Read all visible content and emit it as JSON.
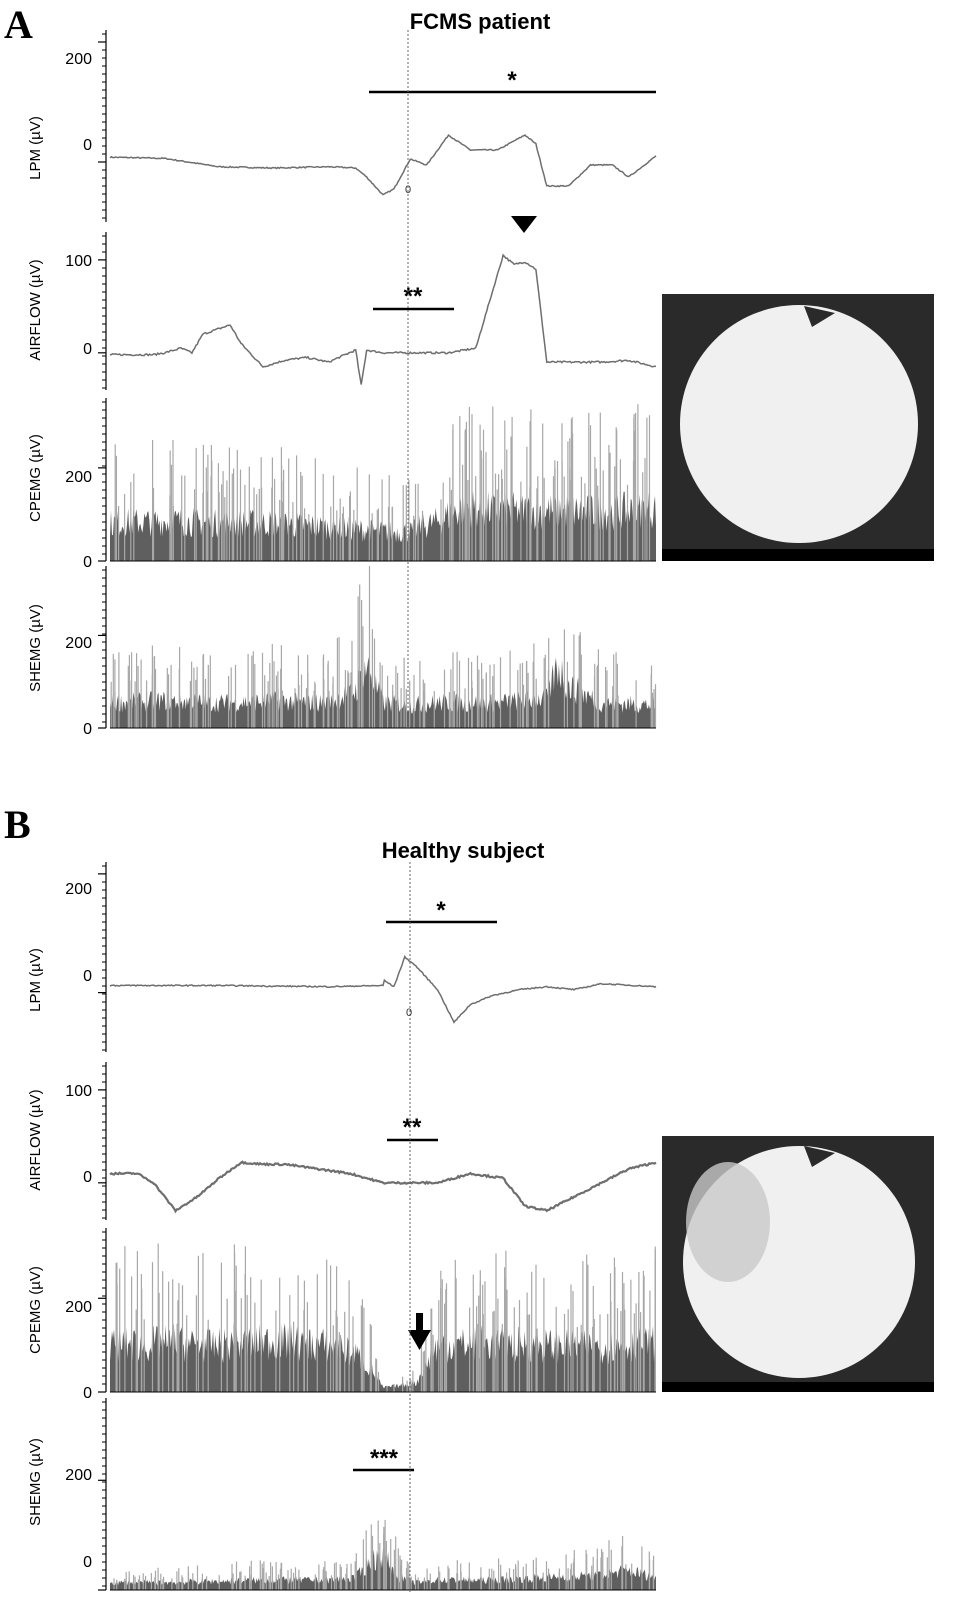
{
  "panels": [
    {
      "letter": "A",
      "title": "FCMS patient",
      "image_alt": "endoscopic view",
      "marker": "0",
      "annotations": {
        "lpm_bar": "*",
        "airflow_bar": "**",
        "arrowhead": "▼"
      },
      "channels": [
        {
          "key": "lpm",
          "label": "LPM (µV)",
          "ticks": [
            "200",
            "0"
          ]
        },
        {
          "key": "airflow",
          "label": "AIRFLOW (µV)",
          "ticks": [
            "100",
            "0"
          ]
        },
        {
          "key": "cpemg",
          "label": "CPEMG (µV)",
          "ticks": [
            "200",
            "0"
          ]
        },
        {
          "key": "shemg",
          "label": "SHEMG (µV)",
          "ticks": [
            "200",
            "0"
          ]
        }
      ]
    },
    {
      "letter": "B",
      "title": "Healthy subject",
      "image_alt": "endoscopic view",
      "marker": "0",
      "annotations": {
        "lpm_bar": "*",
        "airflow_bar": "**",
        "shemg_bar": "***",
        "arrow": "↓"
      },
      "channels": [
        {
          "key": "lpm",
          "label": "LPM (µV)",
          "ticks": [
            "200",
            "0"
          ]
        },
        {
          "key": "airflow",
          "label": "AIRFLOW (µV)",
          "ticks": [
            "100",
            "0"
          ]
        },
        {
          "key": "cpemg",
          "label": "CPEMG (µV)",
          "ticks": [
            "200",
            "0"
          ]
        },
        {
          "key": "shemg",
          "label": "SHEMG (µV)",
          "ticks": [
            "200",
            "0"
          ]
        }
      ]
    }
  ],
  "colors": {
    "trace": "#6e6e6e",
    "emg_fill": "#5f5f5f",
    "emg_spike": "#a8a8a8",
    "axis": "#000000",
    "endo_bg": "#2a2a2a",
    "endo_disc": "#f2f2f2"
  },
  "chart_data": [
    {
      "type": "line",
      "panel": "A",
      "channels": {
        "lpm": {
          "unit": "µV",
          "ylim": [
            -100,
            220
          ],
          "x": [
            0,
            0.1,
            0.2,
            0.3,
            0.4,
            0.45,
            0.47,
            0.5,
            0.52,
            0.55,
            0.58,
            0.62,
            0.66,
            0.71,
            0.76,
            0.78,
            0.8,
            0.84,
            0.88,
            0.92,
            0.95,
            1
          ],
          "y": [
            8,
            6,
            -8,
            -10,
            -8,
            -10,
            -25,
            -55,
            -45,
            5,
            -5,
            45,
            20,
            20,
            45,
            30,
            -40,
            -40,
            -5,
            -5,
            -25,
            10
          ]
        },
        "airflow": {
          "unit": "µV",
          "ylim": [
            -40,
            130
          ],
          "x": [
            0,
            0.08,
            0.1,
            0.13,
            0.15,
            0.17,
            0.22,
            0.24,
            0.28,
            0.32,
            0.36,
            0.4,
            0.45,
            0.46,
            0.47,
            0.5,
            0.55,
            0.6,
            0.62,
            0.67,
            0.72,
            0.73,
            0.74,
            0.76,
            0.78,
            0.79,
            0.8,
            0.85,
            0.9,
            0.95,
            1
          ],
          "y": [
            -2,
            -2,
            0,
            5,
            0,
            20,
            30,
            10,
            -15,
            -8,
            -5,
            -10,
            3,
            -35,
            3,
            0,
            0,
            0,
            0,
            5,
            105,
            100,
            95,
            98,
            90,
            40,
            -10,
            -10,
            -10,
            -8,
            -15
          ]
        },
        "cpemg": {
          "unit": "µV",
          "ylim": [
            0,
            350
          ],
          "x": [
            0,
            0.1,
            0.2,
            0.3,
            0.4,
            0.45,
            0.5,
            0.55,
            0.6,
            0.65,
            0.7,
            0.8,
            0.9,
            1
          ],
          "y": [
            90,
            95,
            90,
            90,
            80,
            75,
            70,
            70,
            95,
            130,
            120,
            120,
            115,
            125
          ]
        },
        "shemg": {
          "unit": "µV",
          "ylim": [
            0,
            350
          ],
          "x": [
            0,
            0.1,
            0.2,
            0.3,
            0.4,
            0.45,
            0.47,
            0.5,
            0.55,
            0.6,
            0.7,
            0.8,
            0.82,
            0.84,
            0.9,
            1
          ],
          "y": [
            60,
            65,
            60,
            65,
            60,
            90,
            150,
            60,
            55,
            60,
            60,
            70,
            150,
            100,
            60,
            55
          ]
        }
      }
    },
    {
      "type": "line",
      "panel": "B",
      "channels": {
        "lpm": {
          "unit": "µV",
          "ylim": [
            -100,
            220
          ],
          "x": [
            0,
            0.2,
            0.4,
            0.5,
            0.5,
            0.52,
            0.54,
            0.56,
            0.6,
            0.63,
            0.66,
            0.7,
            0.75,
            0.8,
            0.85,
            0.9,
            1
          ],
          "y": [
            12,
            12,
            10,
            12,
            22,
            10,
            60,
            45,
            5,
            -50,
            -20,
            -5,
            5,
            10,
            5,
            15,
            10
          ]
        },
        "airflow": {
          "unit": "µV",
          "ylim": [
            -40,
            130
          ],
          "x": [
            0,
            0.05,
            0.08,
            0.12,
            0.16,
            0.2,
            0.24,
            0.28,
            0.32,
            0.38,
            0.44,
            0.5,
            0.56,
            0.6,
            0.66,
            0.72,
            0.76,
            0.8,
            0.85,
            0.9,
            0.95,
            1
          ],
          "y": [
            10,
            10,
            0,
            -30,
            -15,
            5,
            22,
            20,
            20,
            15,
            10,
            0,
            0,
            0,
            10,
            5,
            -25,
            -30,
            -15,
            0,
            15,
            22
          ]
        },
        "cpemg": {
          "unit": "µV",
          "ylim": [
            0,
            350
          ],
          "x": [
            0,
            0.1,
            0.2,
            0.3,
            0.4,
            0.45,
            0.48,
            0.5,
            0.53,
            0.56,
            0.6,
            0.7,
            0.8,
            0.9,
            1
          ],
          "y": [
            110,
            115,
            110,
            120,
            110,
            90,
            50,
            10,
            15,
            20,
            110,
            115,
            110,
            105,
            115
          ]
        },
        "shemg": {
          "unit": "µV",
          "ylim": [
            0,
            350
          ],
          "x": [
            0,
            0.1,
            0.2,
            0.3,
            0.4,
            0.45,
            0.48,
            0.5,
            0.53,
            0.56,
            0.6,
            0.7,
            0.8,
            0.9,
            0.95,
            1
          ],
          "y": [
            15,
            15,
            18,
            20,
            20,
            25,
            60,
            70,
            25,
            15,
            20,
            20,
            25,
            30,
            40,
            25
          ]
        }
      }
    }
  ]
}
